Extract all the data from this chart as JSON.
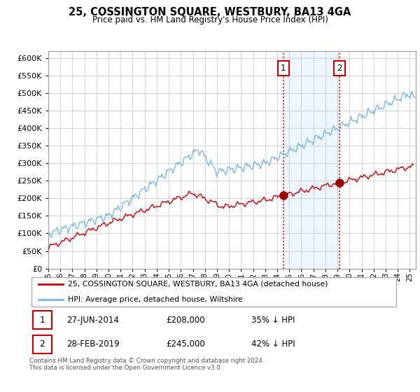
{
  "title": "25, COSSINGTON SQUARE, WESTBURY, BA13 4GA",
  "subtitle": "Price paid vs. HM Land Registry's House Price Index (HPI)",
  "ylim": [
    0,
    620000
  ],
  "yticks": [
    0,
    50000,
    100000,
    150000,
    200000,
    250000,
    300000,
    350000,
    400000,
    450000,
    500000,
    550000,
    600000
  ],
  "xlim_start": 1995.0,
  "xlim_end": 2025.5,
  "transaction1": {
    "date_num": 2014.5,
    "price": 208000,
    "label": "1",
    "date_str": "27-JUN-2014",
    "pct": "35% ↓ HPI"
  },
  "transaction2": {
    "date_num": 2019.17,
    "price": 245000,
    "label": "2",
    "date_str": "28-FEB-2019",
    "pct": "42% ↓ HPI"
  },
  "legend_entry1": "25, COSSINGTON SQUARE, WESTBURY, BA13 4GA (detached house)",
  "legend_entry2": "HPI: Average price, detached house, Wiltshire",
  "footer": "Contains HM Land Registry data © Crown copyright and database right 2024.\nThis data is licensed under the Open Government Licence v3.0.",
  "line_color_property": "#cc0000",
  "line_color_hpi": "#7ab8e8",
  "fill_color_hpi": "#ddeeff",
  "marker_color_property": "#990000",
  "dashed_color": "#dd0000",
  "background_color": "#ffffff",
  "grid_color": "#cccccc",
  "box_edge_color": "#cc0000"
}
